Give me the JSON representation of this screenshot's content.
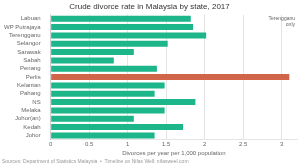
{
  "chart_data": {
    "type": "bar",
    "orientation": "horizontal",
    "title": "Crude divorce rate in Malaysia by state, 2017",
    "xlabel": "Divorces per year per 1,000 population",
    "categories": [
      "Labuan",
      "WP Putrajaya",
      "Terengganu",
      "Selangor",
      "Sarawak",
      "Sabah",
      "Penang",
      "Perlis",
      "Kelantan",
      "Pahang",
      "NS",
      "Melaka",
      "Johor(an)",
      "Kedah",
      "Johor"
    ],
    "values": [
      1.82,
      1.85,
      2.02,
      1.52,
      1.08,
      0.82,
      1.38,
      3.1,
      1.48,
      1.35,
      1.88,
      1.48,
      1.08,
      1.72,
      1.35
    ],
    "colors": [
      "#1db58a",
      "#1db58a",
      "#1db58a",
      "#1db58a",
      "#1db58a",
      "#1db58a",
      "#1db58a",
      "#d0654a",
      "#1db58a",
      "#1db58a",
      "#1db58a",
      "#1db58a",
      "#1db58a",
      "#1db58a",
      "#1db58a"
    ],
    "xlim": [
      0,
      3.2
    ],
    "xticks": [
      0,
      0.5,
      1,
      1.5,
      2,
      2.5,
      3
    ],
    "grid": true,
    "annotation": "Terengganu\nonly",
    "source": "Sources: Department of Statistics Malaysia  •  Timeline on Nifas Well: nifasweel.com"
  }
}
